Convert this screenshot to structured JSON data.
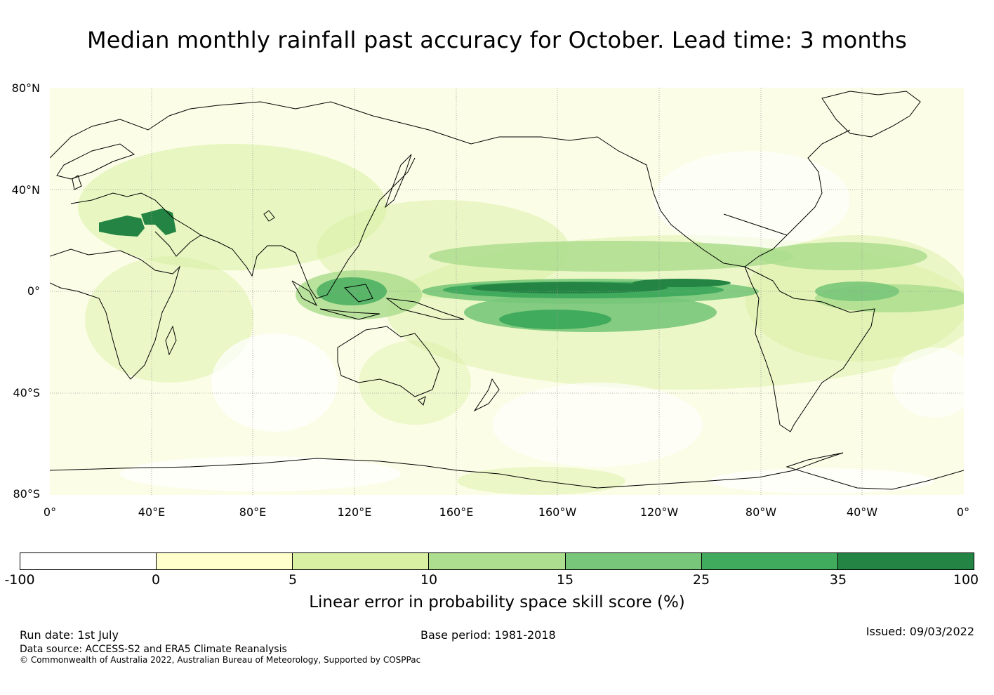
{
  "title": "Median monthly rainfall past accuracy for October. Lead time: 3 months",
  "map": {
    "lat_labels": [
      "80°N",
      "40°N",
      "0°",
      "40°S",
      "80°S"
    ],
    "lon_labels": [
      "0°",
      "40°E",
      "80°E",
      "120°E",
      "160°E",
      "160°W",
      "120°W",
      "80°W",
      "40°W",
      "0°"
    ],
    "colors": {
      "background": "#fbfde6",
      "coastline": "#000000",
      "gridline": "#9a9a9a"
    }
  },
  "colorbar": {
    "ticks": [
      "-100",
      "0",
      "5",
      "10",
      "15",
      "25",
      "35",
      "100"
    ],
    "colors": [
      "#ffffff",
      "#ffffcc",
      "#d9f0a3",
      "#addd8e",
      "#78c679",
      "#41ab5d",
      "#238443"
    ],
    "label": "Linear error in probability space skill score (%)"
  },
  "footer": {
    "run_date": "Run date: 1st July",
    "base_period": "Base period: 1981-2018",
    "issued": "Issued: 09/03/2022",
    "data_source": "Data source: ACCESS-S2 and ERA5 Climate Reanalysis",
    "copyright": "© Commonwealth of Australia 2022, Australian Bureau of Meteorology, Supported by COSPPac"
  }
}
